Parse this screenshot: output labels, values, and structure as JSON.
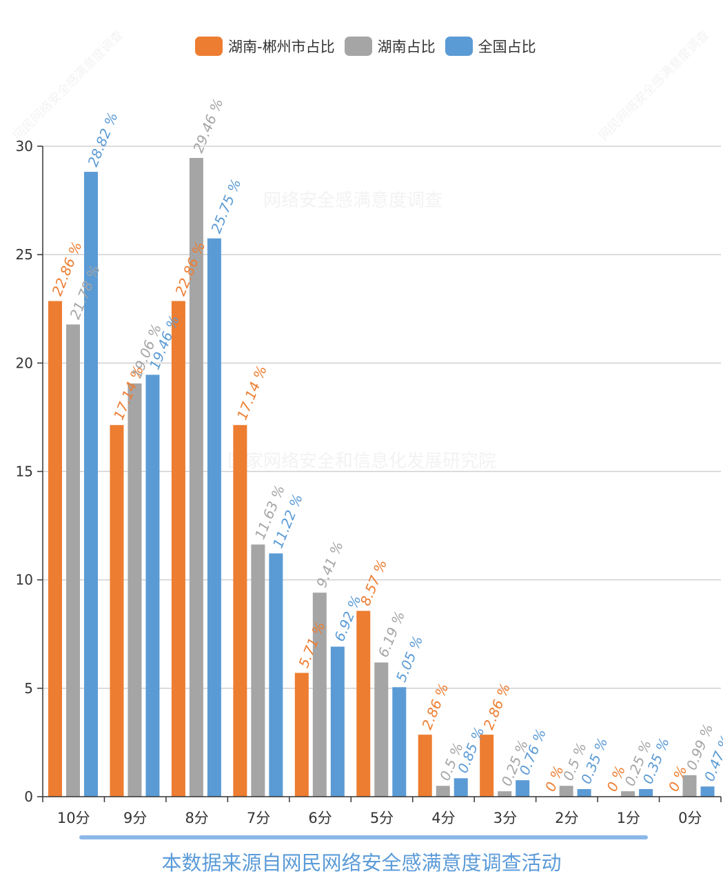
{
  "chart_data": {
    "type": "bar",
    "categories": [
      "10分",
      "9分",
      "8分",
      "7分",
      "6分",
      "5分",
      "4分",
      "3分",
      "2分",
      "1分",
      "0分"
    ],
    "series": [
      {
        "name": "湖南-郴州市占比",
        "color": "#ed7d31",
        "values": [
          22.86,
          17.14,
          22.86,
          17.14,
          5.71,
          8.57,
          2.86,
          2.86,
          0,
          0,
          0
        ],
        "labels": [
          "22.86 %",
          "17.14 %",
          "22.86 %",
          "17.14 %",
          "5.71 %",
          "8.57 %",
          "2.86 %",
          "2.86 %",
          "0 %",
          "0 %",
          "0 %"
        ]
      },
      {
        "name": "湖南占比",
        "color": "#a5a5a5",
        "values": [
          21.78,
          19.06,
          29.46,
          11.63,
          9.41,
          6.19,
          0.5,
          0.25,
          0.5,
          0.25,
          0.99
        ],
        "labels": [
          "21.78 %",
          "19.06 %",
          "29.46 %",
          "11.63 %",
          "9.41 %",
          "6.19 %",
          "0.5 %",
          "0.25 %",
          "0.5 %",
          "0.25 %",
          "0.99 %"
        ]
      },
      {
        "name": "全国占比",
        "color": "#5b9bd5",
        "values": [
          28.82,
          19.46,
          25.75,
          11.22,
          6.92,
          5.05,
          0.85,
          0.76,
          0.35,
          0.35,
          0.47
        ],
        "labels": [
          "28.82 %",
          "19.46 %",
          "25.75 %",
          "11.22 %",
          "6.92 %",
          "5.05 %",
          "0.85 %",
          "0.76 %",
          "0.35 %",
          "0.35 %",
          "0.47 %"
        ]
      }
    ],
    "yticks": [
      "0",
      "5",
      "10",
      "15",
      "20",
      "25",
      "30"
    ],
    "ylim": [
      0,
      30
    ],
    "grid": true,
    "legend_position": "top-center"
  },
  "footnote": "本数据来源自网民网络安全感满意度调查活动",
  "watermarks": {
    "title": "网络安全感满意度调查",
    "org": "国家网络安全和信息化发展研究院",
    "corner": "网民网络安全感满意度调查"
  }
}
